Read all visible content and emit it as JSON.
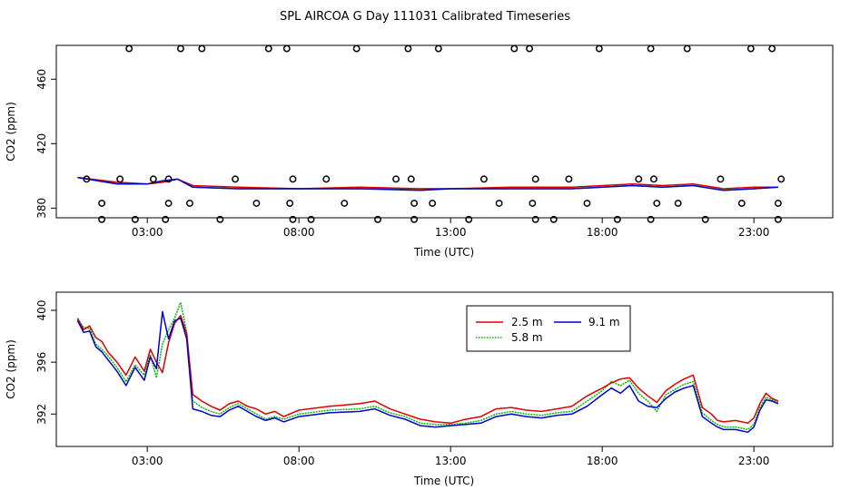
{
  "title": "SPL AIRCOA G  Day 111031  Calibrated Timeseries",
  "colors": {
    "c25": "#dd0000",
    "c58": "#00bb00",
    "c91": "#0000cc"
  },
  "chart_data": [
    {
      "type": "line",
      "xlabel": "Time (UTC)",
      "ylabel": "CO2 (ppm)",
      "xlim": [
        0.0,
        25.6
      ],
      "ylim": [
        374,
        481
      ],
      "xticks": [
        3,
        8,
        13,
        18,
        23
      ],
      "xtick_labels": [
        "03:00",
        "08:00",
        "13:00",
        "18:00",
        "23:00"
      ],
      "yticks": [
        380,
        420,
        460
      ],
      "ytick_labels": [
        "380",
        "420",
        "460"
      ],
      "grid": false,
      "series": [
        {
          "name": "2.5 m",
          "color": "#dd0000",
          "x": [
            0.7,
            2.0,
            3.0,
            3.5,
            4.0,
            4.5,
            6,
            8,
            10,
            12,
            13,
            15,
            17,
            18,
            19,
            20,
            21,
            22,
            23,
            23.8
          ],
          "y": [
            399,
            396,
            395,
            396,
            398,
            394,
            393,
            392,
            393,
            392,
            392,
            393,
            393,
            394,
            395,
            394,
            395,
            392,
            393,
            393
          ]
        },
        {
          "name": "5.8 m",
          "color": "#00bb00",
          "x": [
            0.7,
            2.0,
            3.0,
            3.5,
            4.0,
            4.5,
            6,
            8,
            10,
            12,
            13,
            15,
            17,
            18,
            19,
            20,
            21,
            22,
            23,
            23.8
          ],
          "y": [
            399,
            396,
            395,
            396,
            398,
            393,
            392,
            392,
            392,
            392,
            392,
            392,
            392,
            393,
            394,
            393,
            394,
            391,
            392,
            393
          ]
        },
        {
          "name": "9.1 m",
          "color": "#0000cc",
          "x": [
            0.7,
            2.0,
            3.0,
            3.5,
            4.0,
            4.5,
            6,
            8,
            10,
            12,
            13,
            15,
            17,
            18,
            19,
            20,
            21,
            22,
            23,
            23.8
          ],
          "y": [
            399,
            395,
            395,
            397,
            398,
            393,
            392,
            392,
            392,
            391,
            392,
            392,
            392,
            393,
            394,
            393,
            394,
            391,
            392,
            393
          ]
        }
      ],
      "markers": {
        "style": "open-circle",
        "points": [
          [
            1.5,
            373
          ],
          [
            2.6,
            373
          ],
          [
            3.6,
            373
          ],
          [
            5.4,
            373
          ],
          [
            7.8,
            373
          ],
          [
            8.4,
            373
          ],
          [
            10.6,
            373
          ],
          [
            11.8,
            373
          ],
          [
            13.6,
            373
          ],
          [
            15.8,
            373
          ],
          [
            16.4,
            373
          ],
          [
            18.5,
            373
          ],
          [
            19.6,
            373
          ],
          [
            21.4,
            373
          ],
          [
            23.8,
            373
          ],
          [
            1.5,
            383
          ],
          [
            3.7,
            383
          ],
          [
            4.4,
            383
          ],
          [
            6.6,
            383
          ],
          [
            7.7,
            383
          ],
          [
            9.5,
            383
          ],
          [
            11.8,
            383
          ],
          [
            12.4,
            383
          ],
          [
            14.6,
            383
          ],
          [
            15.7,
            383
          ],
          [
            17.5,
            383
          ],
          [
            19.8,
            383
          ],
          [
            20.5,
            383
          ],
          [
            22.6,
            383
          ],
          [
            23.8,
            383
          ],
          [
            1.0,
            398
          ],
          [
            2.1,
            398
          ],
          [
            3.2,
            398
          ],
          [
            3.7,
            398
          ],
          [
            5.9,
            398
          ],
          [
            7.8,
            398
          ],
          [
            8.9,
            398
          ],
          [
            11.2,
            398
          ],
          [
            11.7,
            398
          ],
          [
            14.1,
            398
          ],
          [
            15.8,
            398
          ],
          [
            16.9,
            398
          ],
          [
            19.2,
            398
          ],
          [
            19.7,
            398
          ],
          [
            21.9,
            398
          ],
          [
            23.9,
            398
          ],
          [
            2.4,
            479
          ],
          [
            4.1,
            479
          ],
          [
            4.8,
            479
          ],
          [
            7.0,
            479
          ],
          [
            7.6,
            479
          ],
          [
            9.9,
            479
          ],
          [
            11.6,
            479
          ],
          [
            12.6,
            479
          ],
          [
            15.1,
            479
          ],
          [
            15.6,
            479
          ],
          [
            17.9,
            479
          ],
          [
            19.6,
            479
          ],
          [
            20.8,
            479
          ],
          [
            22.9,
            479
          ],
          [
            23.6,
            479
          ]
        ]
      }
    },
    {
      "type": "line",
      "xlabel": "Time (UTC)",
      "ylabel": "CO2 (ppm)",
      "xlim": [
        0.0,
        25.6
      ],
      "ylim": [
        389.5,
        401.4
      ],
      "xticks": [
        3,
        8,
        13,
        18,
        23
      ],
      "xtick_labels": [
        "03:00",
        "08:00",
        "13:00",
        "18:00",
        "23:00"
      ],
      "yticks": [
        392,
        396,
        400
      ],
      "ytick_labels": [
        "392",
        "396",
        "400"
      ],
      "grid": false,
      "legend": {
        "placement": "top-center-right",
        "entries": [
          "2.5 m",
          "9.1 m",
          "5.8 m"
        ]
      },
      "series": [
        {
          "name": "2.5 m",
          "color": "#dd0000",
          "x": [
            0.7,
            0.9,
            1.1,
            1.3,
            1.5,
            1.7,
            2.0,
            2.3,
            2.6,
            2.9,
            3.1,
            3.3,
            3.5,
            3.7,
            3.9,
            4.1,
            4.3,
            4.5,
            4.8,
            5.1,
            5.4,
            5.7,
            6.0,
            6.3,
            6.6,
            6.9,
            7.2,
            7.5,
            8.0,
            9.0,
            10.0,
            10.5,
            11.0,
            11.5,
            12.0,
            12.5,
            13.0,
            13.5,
            14.0,
            14.5,
            15.0,
            15.5,
            16.0,
            16.5,
            17.0,
            17.5,
            18.0,
            18.3,
            18.6,
            18.9,
            19.2,
            19.5,
            19.8,
            20.1,
            20.4,
            20.7,
            21.0,
            21.3,
            21.6,
            21.8,
            22.0,
            22.4,
            22.8,
            23.0,
            23.2,
            23.4,
            23.6,
            23.8
          ],
          "y": [
            399.4,
            398.5,
            398.8,
            397.9,
            397.6,
            396.8,
            396.0,
            395.0,
            396.4,
            395.3,
            397.0,
            396.0,
            395.2,
            397.5,
            399.0,
            399.6,
            398.2,
            393.5,
            393.0,
            392.6,
            392.3,
            392.8,
            393.0,
            392.6,
            392.4,
            392.0,
            392.2,
            391.8,
            392.3,
            392.6,
            392.8,
            393.0,
            392.4,
            392.0,
            391.6,
            391.4,
            391.3,
            391.6,
            391.8,
            392.4,
            392.5,
            392.3,
            392.2,
            392.4,
            392.6,
            393.4,
            394.0,
            394.4,
            394.7,
            394.8,
            394.0,
            393.4,
            392.9,
            393.8,
            394.3,
            394.7,
            395.0,
            392.5,
            392.0,
            391.5,
            391.4,
            391.5,
            391.3,
            391.7,
            392.8,
            393.6,
            393.2,
            393.0
          ]
        },
        {
          "name": "5.8 m",
          "color": "#00bb00",
          "x": [
            0.7,
            0.9,
            1.1,
            1.3,
            1.5,
            1.7,
            2.0,
            2.3,
            2.6,
            2.9,
            3.1,
            3.3,
            3.5,
            3.7,
            3.9,
            4.1,
            4.3,
            4.5,
            4.8,
            5.1,
            5.4,
            5.7,
            6.0,
            6.3,
            6.6,
            6.9,
            7.2,
            7.5,
            8.0,
            9.0,
            10.0,
            10.5,
            11.0,
            11.5,
            12.0,
            12.5,
            13.0,
            13.5,
            14.0,
            14.5,
            15.0,
            15.5,
            16.0,
            16.5,
            17.0,
            17.5,
            18.0,
            18.3,
            18.6,
            18.9,
            19.2,
            19.5,
            19.8,
            20.1,
            20.4,
            20.7,
            21.0,
            21.3,
            21.6,
            21.8,
            22.0,
            22.4,
            22.8,
            23.0,
            23.2,
            23.4,
            23.6,
            23.8
          ],
          "y": [
            399.3,
            398.7,
            398.6,
            397.4,
            397.0,
            396.5,
            395.6,
            394.5,
            395.8,
            395.0,
            396.6,
            394.8,
            397.4,
            398.5,
            399.4,
            400.6,
            398.3,
            393.0,
            392.5,
            392.2,
            392.0,
            392.5,
            392.8,
            392.4,
            392.0,
            391.6,
            391.8,
            391.6,
            392.0,
            392.3,
            392.4,
            392.6,
            392.1,
            391.8,
            391.3,
            391.2,
            391.2,
            391.3,
            391.5,
            392.0,
            392.2,
            392.0,
            391.9,
            392.1,
            392.2,
            393.0,
            393.8,
            394.5,
            394.2,
            394.6,
            393.6,
            393.0,
            392.2,
            393.5,
            393.9,
            394.3,
            394.5,
            392.1,
            391.5,
            391.2,
            391.0,
            391.0,
            390.8,
            391.2,
            392.5,
            393.3,
            393.1,
            392.9
          ]
        },
        {
          "name": "9.1 m",
          "color": "#0000cc",
          "x": [
            0.7,
            0.9,
            1.1,
            1.3,
            1.5,
            1.7,
            2.0,
            2.3,
            2.6,
            2.9,
            3.1,
            3.3,
            3.5,
            3.7,
            3.9,
            4.1,
            4.3,
            4.5,
            4.8,
            5.1,
            5.4,
            5.7,
            6.0,
            6.3,
            6.6,
            6.9,
            7.2,
            7.5,
            8.0,
            9.0,
            10.0,
            10.5,
            11.0,
            11.5,
            12.0,
            12.5,
            13.0,
            13.5,
            14.0,
            14.5,
            15.0,
            15.5,
            16.0,
            16.5,
            17.0,
            17.5,
            18.0,
            18.3,
            18.6,
            18.9,
            19.2,
            19.5,
            19.8,
            20.1,
            20.4,
            20.7,
            21.0,
            21.3,
            21.6,
            21.8,
            22.0,
            22.4,
            22.8,
            23.0,
            23.2,
            23.4,
            23.6,
            23.8
          ],
          "y": [
            399.2,
            398.3,
            398.4,
            397.2,
            396.8,
            396.2,
            395.3,
            394.2,
            395.6,
            394.6,
            396.4,
            395.5,
            399.9,
            397.8,
            399.2,
            399.4,
            397.8,
            392.4,
            392.2,
            391.9,
            391.8,
            392.3,
            392.6,
            392.2,
            391.8,
            391.5,
            391.7,
            391.4,
            391.8,
            392.1,
            392.2,
            392.4,
            391.9,
            391.6,
            391.1,
            391.0,
            391.1,
            391.2,
            391.3,
            391.8,
            392.0,
            391.8,
            391.7,
            391.9,
            392.0,
            392.6,
            393.5,
            394.0,
            393.6,
            394.2,
            393.0,
            392.6,
            392.5,
            393.2,
            393.7,
            394.0,
            394.2,
            391.8,
            391.3,
            391.0,
            390.8,
            390.8,
            390.6,
            391.0,
            392.3,
            393.1,
            393.0,
            392.8
          ]
        }
      ]
    }
  ]
}
